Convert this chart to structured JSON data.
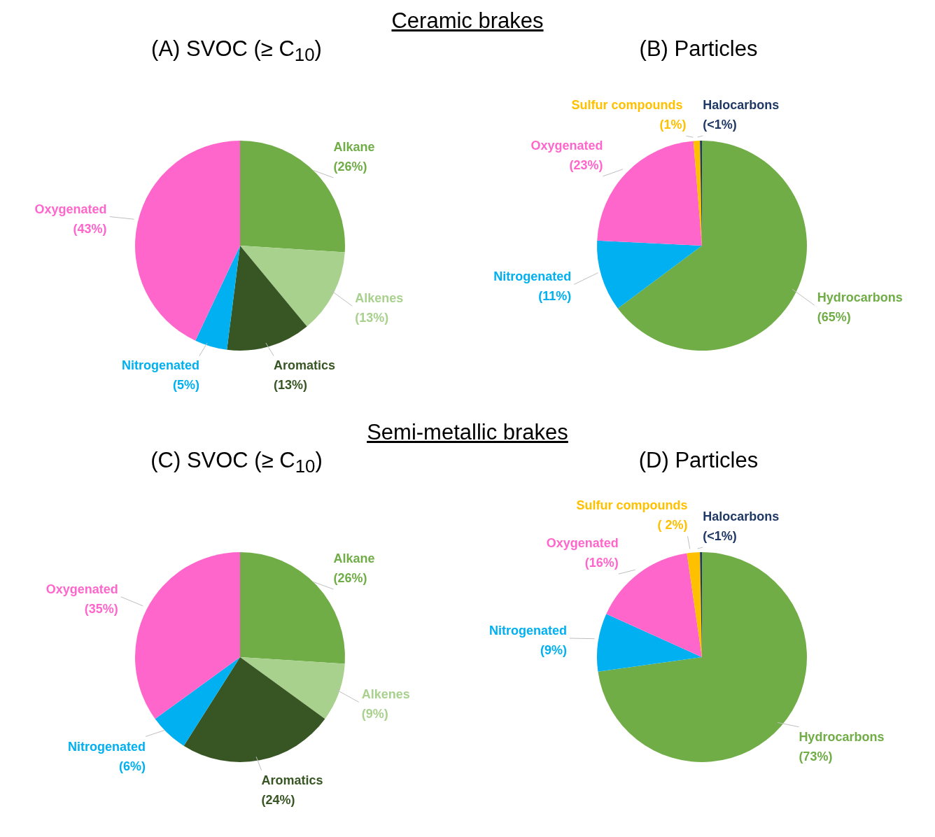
{
  "chart_data": [
    {
      "type": "pie",
      "title": "(A) SVOC (≥ C$_{10}$)",
      "annotations": [
        "Ceramic brakes"
      ],
      "categories": [
        "Alkane",
        "Alkenes",
        "Aromatics",
        "Nitrogenated",
        "Oxygenated"
      ],
      "values": [
        26,
        13,
        13,
        5,
        43
      ],
      "value_labels": [
        "(26%)",
        "(13%)",
        "(13%)",
        "(5%)",
        "(43%)"
      ],
      "colors": [
        "#70ad47",
        "#a9d18e",
        "#375623",
        "#00b0f0",
        "#ff66cc"
      ],
      "legend": false
    },
    {
      "type": "pie",
      "title": "(B) Particles",
      "categories": [
        "Hydrocarbons",
        "Nitrogenated",
        "Oxygenated",
        "Sulfur compounds ",
        "Halocarbons"
      ],
      "values": [
        65,
        11,
        23,
        1,
        0.3
      ],
      "value_labels": [
        "(65%)",
        "(11%)",
        "(23%)",
        "(1%)",
        "(<1%)"
      ],
      "colors": [
        "#70ad47",
        "#00b0f0",
        "#ff66cc",
        "#ffc000",
        "#1f3864"
      ],
      "legend": false
    },
    {
      "type": "pie",
      "title": "(C) SVOC (≥ C$_{10}$)",
      "annotations": [
        "Semi-metallic brakes"
      ],
      "categories": [
        "Alkane",
        "Alkenes",
        "Aromatics",
        "Nitrogenated",
        "Oxygenated"
      ],
      "values": [
        26,
        9,
        24,
        6,
        35
      ],
      "value_labels": [
        "(26%)",
        "(9%)",
        "(24%)",
        "(6%)",
        "(35%)"
      ],
      "colors": [
        "#70ad47",
        "#a9d18e",
        "#375623",
        "#00b0f0",
        "#ff66cc"
      ],
      "legend": false
    },
    {
      "type": "pie",
      "title": "(D) Particles",
      "categories": [
        "Hydrocarbons",
        "Nitrogenated",
        "Oxygenated",
        "Sulfur compounds",
        "Halocarbons"
      ],
      "values": [
        73,
        9,
        16,
        2,
        0.3
      ],
      "value_labels": [
        "(73%)",
        "(9%)",
        "(16%)",
        "( 2%)",
        "(<1%)"
      ],
      "colors": [
        "#70ad47",
        "#00b0f0",
        "#ff66cc",
        "#ffc000",
        "#1f3864"
      ],
      "legend": false
    }
  ]
}
